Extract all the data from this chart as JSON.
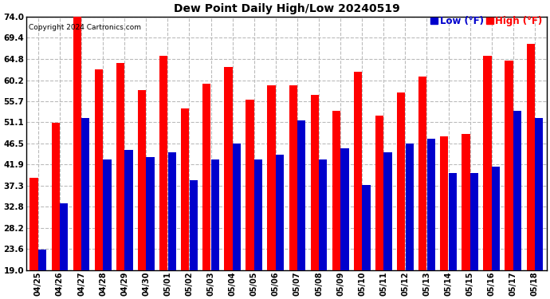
{
  "title": "Dew Point Daily High/Low 20240519",
  "copyright": "Copyright 2024 Cartronics.com",
  "legend_low": "Low",
  "legend_high": "High",
  "legend_unit": "(°F)",
  "dates": [
    "04/25",
    "04/26",
    "04/27",
    "04/28",
    "04/29",
    "04/30",
    "05/01",
    "05/02",
    "05/03",
    "05/04",
    "05/05",
    "05/06",
    "05/07",
    "05/08",
    "05/09",
    "05/10",
    "05/11",
    "05/12",
    "05/13",
    "05/14",
    "05/15",
    "05/16",
    "05/17",
    "05/18"
  ],
  "high_values": [
    39.0,
    51.0,
    75.0,
    62.5,
    64.0,
    58.0,
    65.5,
    54.0,
    59.5,
    63.0,
    56.0,
    59.0,
    59.0,
    57.0,
    53.5,
    62.0,
    52.5,
    57.5,
    61.0,
    48.0,
    48.5,
    65.5,
    64.5,
    68.0
  ],
  "low_values": [
    23.5,
    33.5,
    52.0,
    43.0,
    45.0,
    43.5,
    44.5,
    38.5,
    43.0,
    46.5,
    43.0,
    44.0,
    51.5,
    43.0,
    45.5,
    37.5,
    44.5,
    46.5,
    47.5,
    40.0,
    40.0,
    41.5,
    53.5,
    52.0
  ],
  "bar_color_high": "#ff0000",
  "bar_color_low": "#0000cc",
  "background_color": "#ffffff",
  "plot_bg_color": "#ffffff",
  "grid_color": "#bbbbbb",
  "title_color": "#000000",
  "copyright_color": "#000000",
  "legend_low_color": "#0000cc",
  "legend_high_color": "#ff0000",
  "yticks": [
    19.0,
    23.6,
    28.2,
    32.8,
    37.3,
    41.9,
    46.5,
    51.1,
    55.7,
    60.2,
    64.8,
    69.4,
    74.0
  ],
  "ymin": 19.0,
  "ymax": 74.0,
  "ybaseline": 19.0
}
